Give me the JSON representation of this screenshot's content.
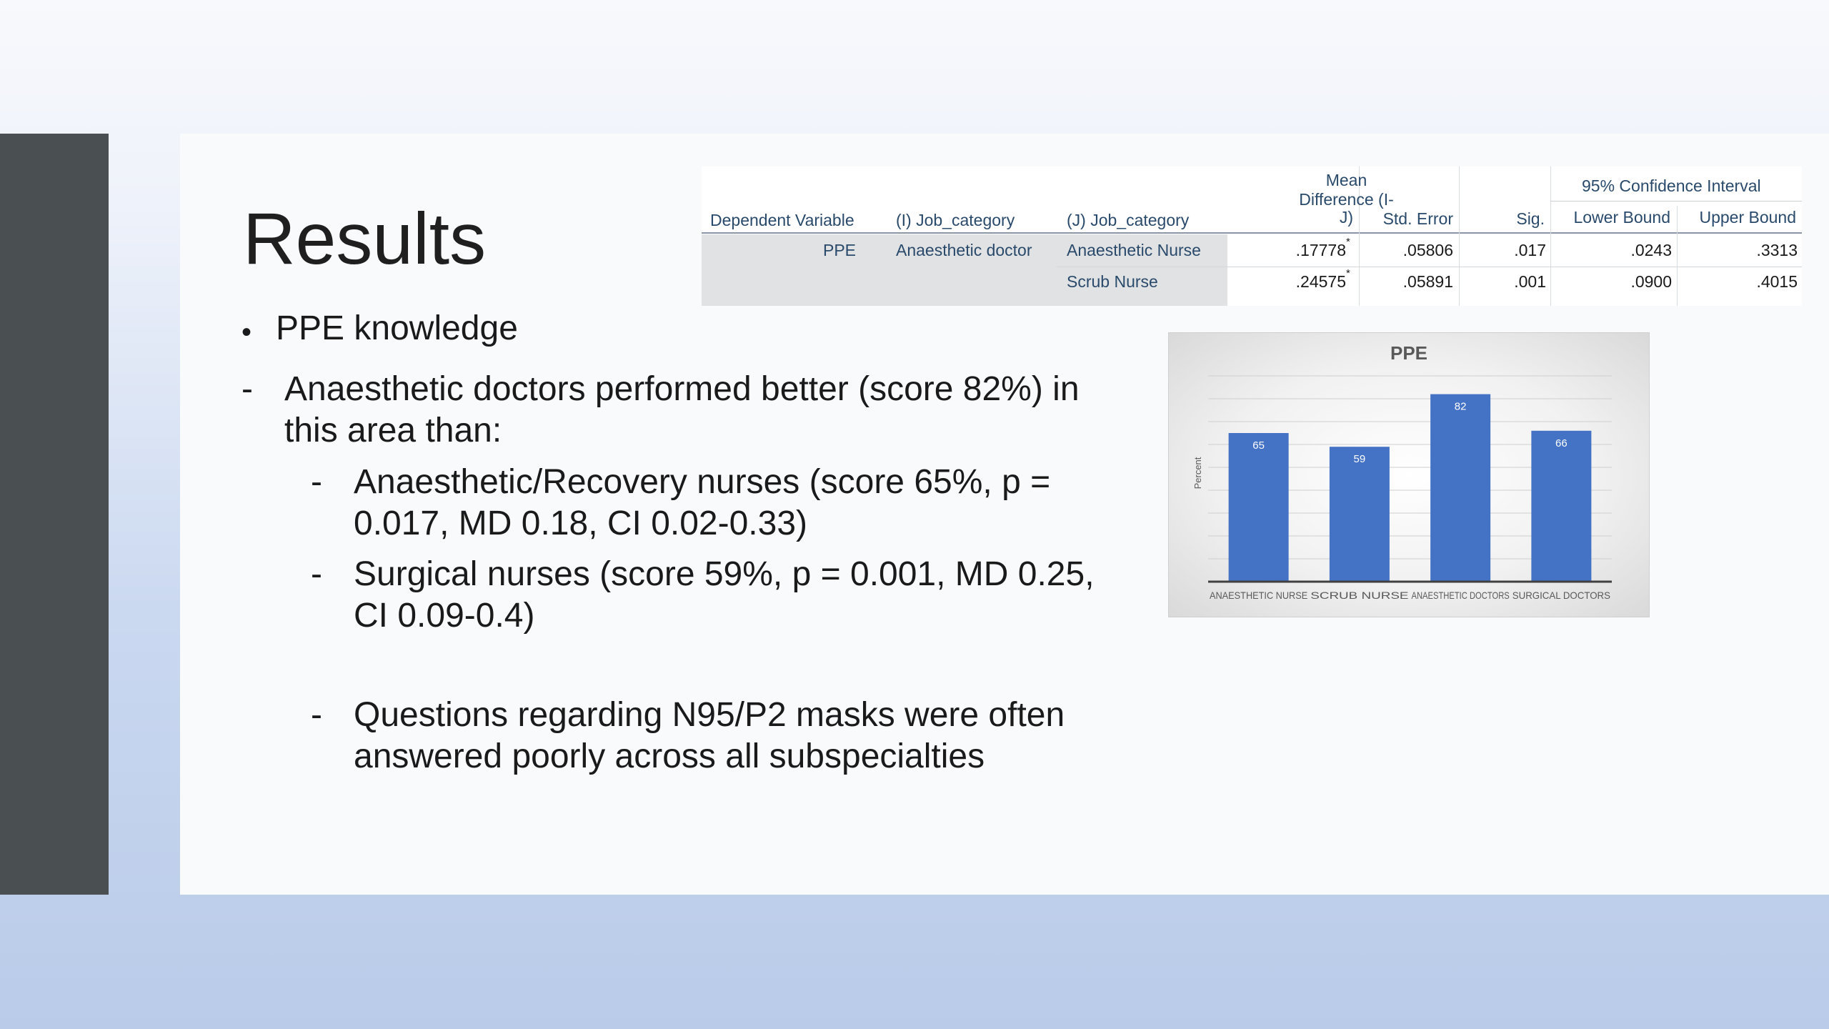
{
  "slide": {
    "title": "Results",
    "bullets": {
      "main": "PPE knowledge",
      "dash1_line1": "Anaesthetic doctors performed better (score 82%) in",
      "dash1_line2": "this area than:",
      "sub1_line1": "Anaesthetic/Recovery nurses (score 65%, p =",
      "sub1_line2": "0.017, MD 0.18, CI 0.02-0.33)",
      "sub2_line1": "Surgical nurses (score 59%, p = 0.001, MD 0.25,",
      "sub2_line2": "CI 0.09-0.4)",
      "sub3_line1": "Questions regarding N95/P2 masks were often",
      "sub3_line2": "answered poorly across all subspecialties"
    }
  },
  "table": {
    "group_header": "95% Confidence Interval",
    "headers": {
      "dependent": "Dependent Variable",
      "i_cat": "(I) Job_category",
      "j_cat": "(J) Job_category",
      "mean_diff_1": "Mean",
      "mean_diff_2": "Difference (I-",
      "mean_diff_3": "J)",
      "std_error": "Std. Error",
      "sig": "Sig.",
      "lower": "Lower Bound",
      "upper": "Upper Bound"
    },
    "rows": [
      {
        "dependent": "PPE",
        "i_cat": "Anaesthetic doctor",
        "j_cat": "Anaesthetic Nurse",
        "mean_diff": ".17778",
        "marker": "*",
        "std_error": ".05806",
        "sig": ".017",
        "lower": ".0243",
        "upper": ".3313"
      },
      {
        "dependent": "",
        "i_cat": "",
        "j_cat": "Scrub Nurse",
        "mean_diff": ".24575",
        "marker": "*",
        "std_error": ".05891",
        "sig": ".001",
        "lower": ".0900",
        "upper": ".4015"
      }
    ]
  },
  "chart_data": {
    "type": "bar",
    "title": "PPE",
    "ylabel": "Percent",
    "categories": [
      "ANAESTHETIC NURSE",
      "SCRUB NURSE",
      "ANAESTHETIC DOCTORS",
      "SURGICAL DOCTORS"
    ],
    "values": [
      65,
      59,
      82,
      66
    ],
    "ylim": [
      0,
      90
    ],
    "grid": true,
    "bar_color": "#4472c4"
  }
}
